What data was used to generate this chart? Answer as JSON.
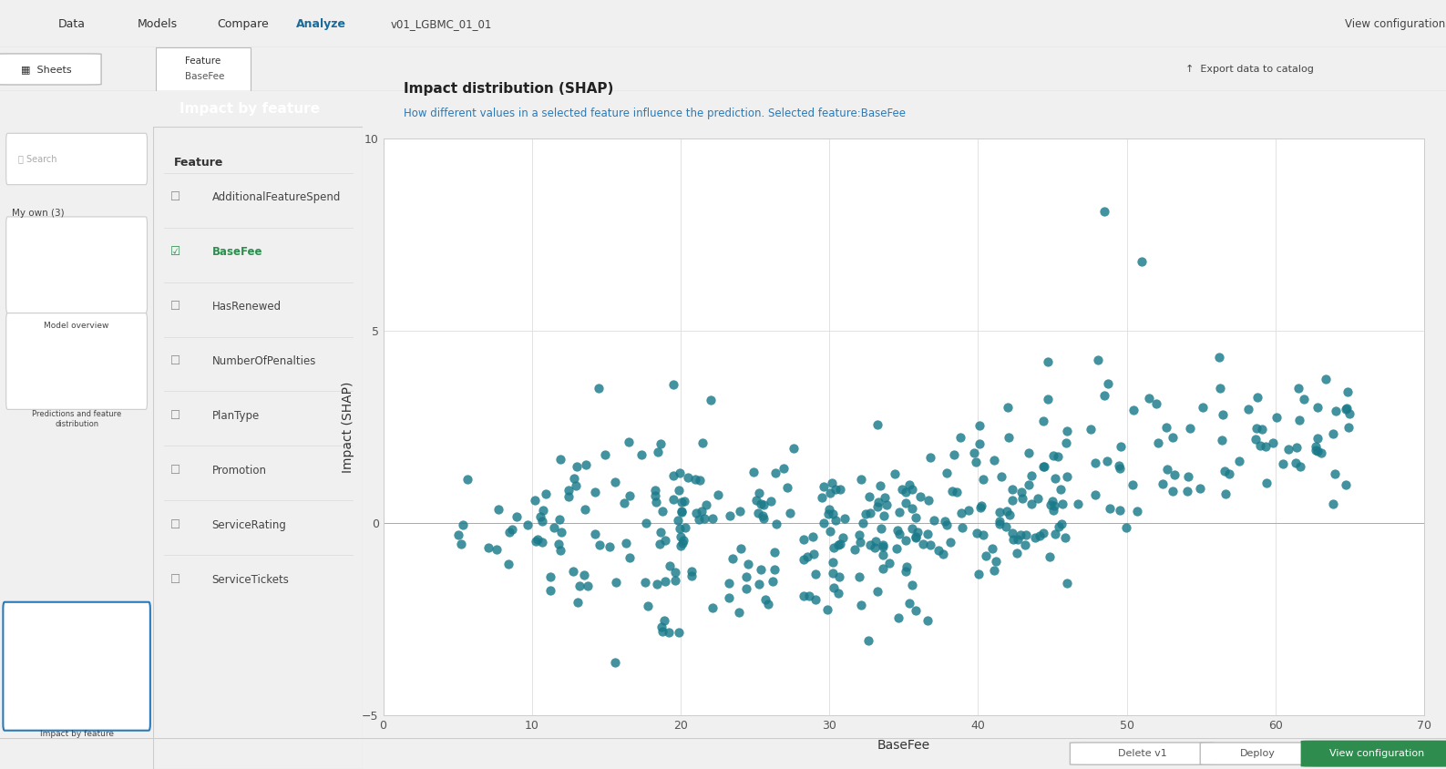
{
  "title": "Impact distribution (SHAP)",
  "subtitle": "How different values in a selected feature influence the prediction. Selected feature:BaseFee",
  "xlabel": "BaseFee",
  "ylabel": "Impact (SHAP)",
  "xlim": [
    0,
    70
  ],
  "ylim": [
    -5,
    10
  ],
  "xticks": [
    0,
    10,
    20,
    30,
    40,
    50,
    60,
    70
  ],
  "yticks": [
    -5,
    0,
    5,
    10
  ],
  "dot_color": "#1a7a8a",
  "dot_alpha": 0.82,
  "dot_size": 55,
  "background_color": "#ffffff",
  "grid_color": "#dddddd",
  "title_color": "#222222",
  "subtitle_color": "#2a7ab8",
  "seed": 99,
  "ui_bg": "#f0f0f0",
  "header_bg": "#e8e8e8",
  "sidebar_bg": "#f5f5f5",
  "panel_bg": "#c8c8c8",
  "green_check": "#2d8c4e",
  "feature_list": [
    "AdditionalFeatureSpend",
    "BaseFee",
    "HasRenewed",
    "NumberOfPenalties",
    "PlanType",
    "Promotion",
    "ServiceRating",
    "ServiceTickets"
  ],
  "selected_feature": "BaseFee"
}
